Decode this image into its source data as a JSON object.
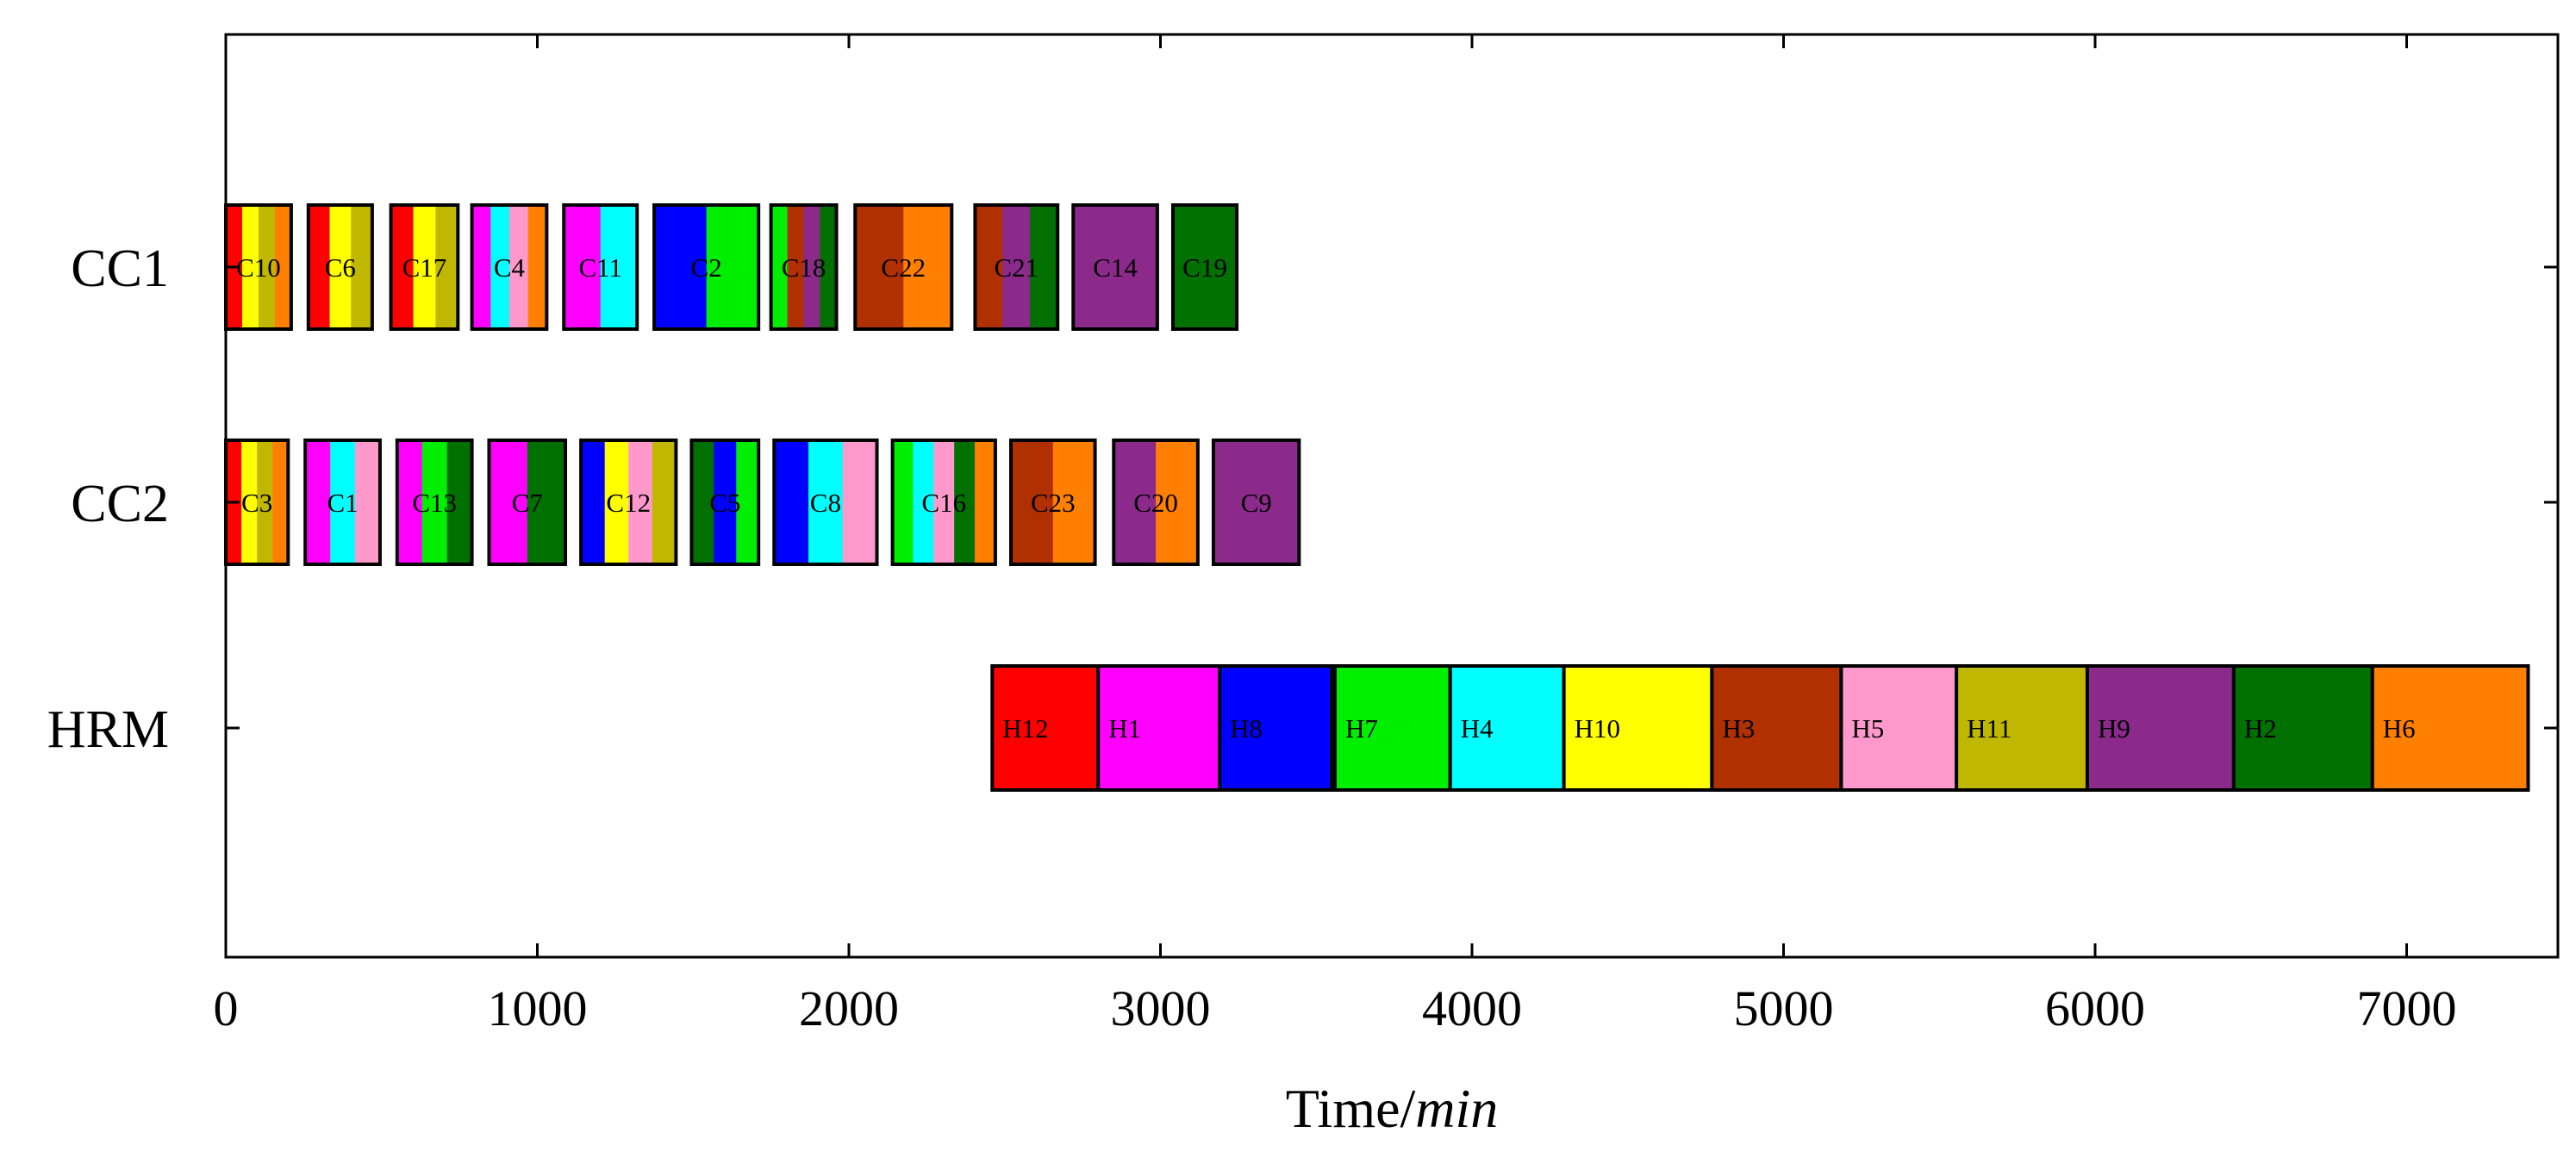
{
  "chart_data": {
    "type": "gantt",
    "title": "",
    "xlabel": "Time/",
    "xlabel_unit": "min",
    "ylabel": "",
    "xlim": [
      0,
      7500
    ],
    "xticks": [
      0,
      1000,
      2000,
      3000,
      4000,
      5000,
      6000,
      7000
    ],
    "xtick_labels": [
      "0",
      "1000",
      "2000",
      "3000",
      "4000",
      "5000",
      "6000",
      "7000"
    ],
    "rows": [
      "CC1",
      "CC2",
      "HRM"
    ],
    "colors": {
      "red": "#ff0000",
      "yellow": "#ffff00",
      "olive": "#c0b800",
      "orange": "#ff8000",
      "magenta": "#ff00ff",
      "cyan": "#00ffff",
      "pink": "#ff99cc",
      "blue": "#0000ff",
      "green": "#00ee00",
      "darkgreen": "#007000",
      "brown": "#b03000",
      "purple": "#8b2a8b"
    },
    "jobs": [
      {
        "row": "CC1",
        "label": "C10",
        "start": 0,
        "end": 210,
        "stripes": [
          "red",
          "yellow",
          "olive",
          "orange"
        ]
      },
      {
        "row": "CC1",
        "label": "C6",
        "start": 265,
        "end": 470,
        "stripes": [
          "red",
          "yellow",
          "olive"
        ]
      },
      {
        "row": "CC1",
        "label": "C17",
        "start": 530,
        "end": 745,
        "stripes": [
          "red",
          "yellow",
          "olive"
        ]
      },
      {
        "row": "CC1",
        "label": "C4",
        "start": 790,
        "end": 1030,
        "stripes": [
          "magenta",
          "cyan",
          "pink",
          "orange"
        ]
      },
      {
        "row": "CC1",
        "label": "C11",
        "start": 1085,
        "end": 1320,
        "stripes": [
          "magenta",
          "cyan"
        ]
      },
      {
        "row": "CC1",
        "label": "C2",
        "start": 1375,
        "end": 1710,
        "stripes": [
          "blue",
          "green"
        ]
      },
      {
        "row": "CC1",
        "label": "C18",
        "start": 1750,
        "end": 1960,
        "stripes": [
          "green",
          "brown",
          "purple",
          "darkgreen"
        ]
      },
      {
        "row": "CC1",
        "label": "C22",
        "start": 2020,
        "end": 2330,
        "stripes": [
          "brown",
          "orange"
        ]
      },
      {
        "row": "CC1",
        "label": "C21",
        "start": 2405,
        "end": 2670,
        "stripes": [
          "brown",
          "purple",
          "darkgreen"
        ]
      },
      {
        "row": "CC1",
        "label": "C14",
        "start": 2720,
        "end": 2990,
        "stripes": [
          "purple"
        ]
      },
      {
        "row": "CC1",
        "label": "C19",
        "start": 3040,
        "end": 3245,
        "stripes": [
          "darkgreen"
        ]
      },
      {
        "row": "CC2",
        "label": "C3",
        "start": 0,
        "end": 200,
        "stripes": [
          "red",
          "yellow",
          "olive",
          "orange"
        ]
      },
      {
        "row": "CC2",
        "label": "C1",
        "start": 255,
        "end": 495,
        "stripes": [
          "magenta",
          "cyan",
          "pink"
        ]
      },
      {
        "row": "CC2",
        "label": "C13",
        "start": 550,
        "end": 790,
        "stripes": [
          "magenta",
          "green",
          "darkgreen"
        ]
      },
      {
        "row": "CC2",
        "label": "C7",
        "start": 845,
        "end": 1090,
        "stripes": [
          "magenta",
          "darkgreen"
        ]
      },
      {
        "row": "CC2",
        "label": "C12",
        "start": 1140,
        "end": 1445,
        "stripes": [
          "blue",
          "yellow",
          "pink",
          "olive"
        ]
      },
      {
        "row": "CC2",
        "label": "C5",
        "start": 1495,
        "end": 1710,
        "stripes": [
          "darkgreen",
          "blue",
          "green"
        ]
      },
      {
        "row": "CC2",
        "label": "C8",
        "start": 1760,
        "end": 2090,
        "stripes": [
          "blue",
          "cyan",
          "pink"
        ]
      },
      {
        "row": "CC2",
        "label": "C16",
        "start": 2140,
        "end": 2470,
        "stripes": [
          "green",
          "cyan",
          "pink",
          "darkgreen",
          "orange"
        ]
      },
      {
        "row": "CC2",
        "label": "C23",
        "start": 2520,
        "end": 2790,
        "stripes": [
          "brown",
          "orange"
        ]
      },
      {
        "row": "CC2",
        "label": "C20",
        "start": 2850,
        "end": 3120,
        "stripes": [
          "purple",
          "orange"
        ]
      },
      {
        "row": "CC2",
        "label": "C9",
        "start": 3170,
        "end": 3445,
        "stripes": [
          "purple"
        ]
      },
      {
        "row": "HRM",
        "label": "H12",
        "start": 2460,
        "end": 2800,
        "stripes": [
          "red"
        ]
      },
      {
        "row": "HRM",
        "label": "H1",
        "start": 2800,
        "end": 3190,
        "stripes": [
          "magenta"
        ]
      },
      {
        "row": "HRM",
        "label": "H8",
        "start": 3190,
        "end": 3550,
        "stripes": [
          "blue"
        ]
      },
      {
        "row": "HRM",
        "label": "H7",
        "start": 3560,
        "end": 3930,
        "stripes": [
          "green"
        ]
      },
      {
        "row": "HRM",
        "label": "H4",
        "start": 3930,
        "end": 4295,
        "stripes": [
          "cyan"
        ]
      },
      {
        "row": "HRM",
        "label": "H10",
        "start": 4295,
        "end": 4770,
        "stripes": [
          "yellow"
        ]
      },
      {
        "row": "HRM",
        "label": "H3",
        "start": 4770,
        "end": 5185,
        "stripes": [
          "brown"
        ]
      },
      {
        "row": "HRM",
        "label": "H5",
        "start": 5185,
        "end": 5555,
        "stripes": [
          "pink"
        ]
      },
      {
        "row": "HRM",
        "label": "H11",
        "start": 5555,
        "end": 5975,
        "stripes": [
          "olive"
        ]
      },
      {
        "row": "HRM",
        "label": "H9",
        "start": 5975,
        "end": 6445,
        "stripes": [
          "purple"
        ]
      },
      {
        "row": "HRM",
        "label": "H2",
        "start": 6445,
        "end": 6890,
        "stripes": [
          "darkgreen"
        ]
      },
      {
        "row": "HRM",
        "label": "H6",
        "start": 6890,
        "end": 7390,
        "stripes": [
          "orange"
        ]
      }
    ]
  }
}
